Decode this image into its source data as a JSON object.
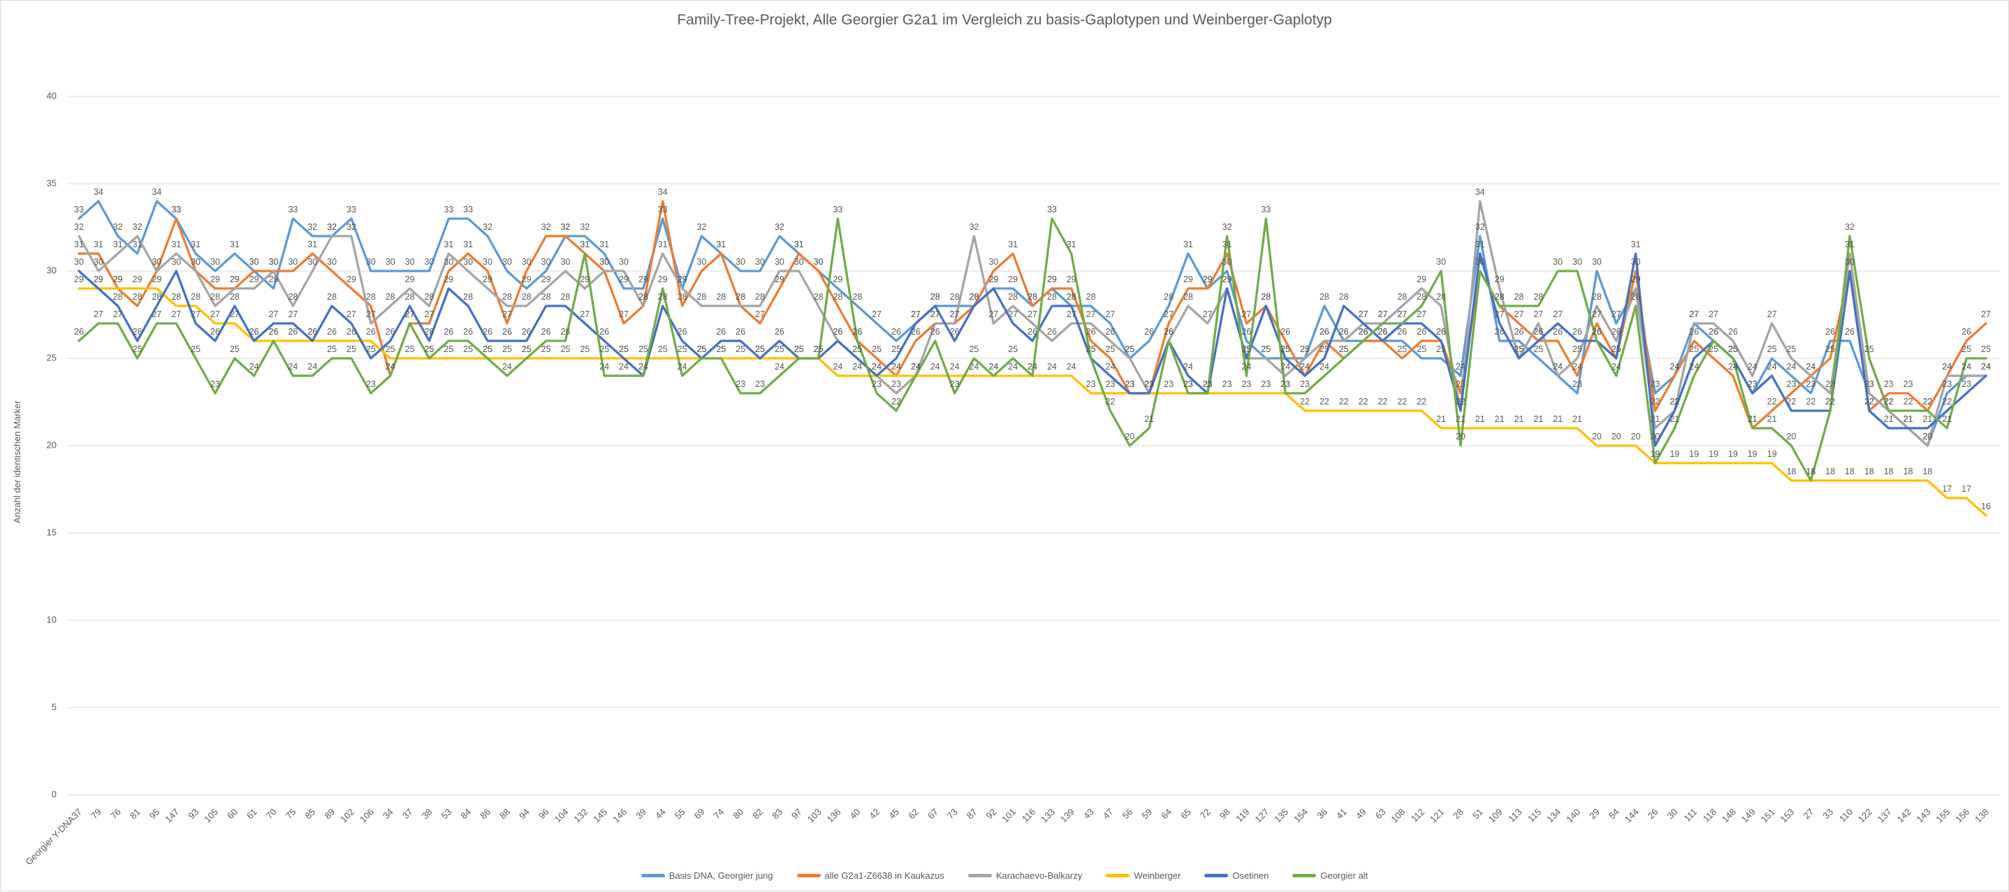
{
  "title": "Family-Tree-Projekt, Alle Georgier G2a1 im Vergleich zu basis-Gaplotypen und Weinberger-Gaplotyp",
  "y_axis": {
    "title": "Anzahl der identischen Marker",
    "ticks": [
      0,
      5,
      10,
      15,
      20,
      25,
      30,
      35,
      40
    ]
  },
  "colors": {
    "grid": "#d9d9d9",
    "axis_text": "#595959",
    "data_label": "#595959",
    "title_text": "#595959",
    "background": "#ffffff"
  },
  "chart_data": {
    "type": "line",
    "title": "Family-Tree-Projekt, Alle Georgier G2a1 im Vergleich zu basis-Gaplotypen und Weinberger-Gaplotyp",
    "xlabel": "",
    "ylabel": "Anzahl der identischen Marker",
    "ylim": [
      0,
      40
    ],
    "y_ticks": [
      0,
      5,
      10,
      15,
      20,
      25,
      30,
      35,
      40
    ],
    "grid": true,
    "data_labels": true,
    "legend_position": "bottom",
    "categories": [
      "Georgier Y-DNA37",
      "79",
      "76",
      "81",
      "95",
      "147",
      "93",
      "105",
      "60",
      "61",
      "70",
      "75",
      "85",
      "89",
      "102",
      "106",
      "34",
      "37",
      "38",
      "53",
      "84",
      "86",
      "88",
      "94",
      "96",
      "104",
      "132",
      "145",
      "146",
      "39",
      "44",
      "55",
      "69",
      "74",
      "80",
      "82",
      "83",
      "97",
      "103",
      "136",
      "40",
      "42",
      "45",
      "62",
      "67",
      "73",
      "87",
      "92",
      "101",
      "116",
      "133",
      "139",
      "43",
      "47",
      "56",
      "59",
      "64",
      "65",
      "72",
      "98",
      "119",
      "127",
      "135",
      "154",
      "36",
      "41",
      "49",
      "63",
      "108",
      "112",
      "121",
      "28",
      "51",
      "109",
      "113",
      "115",
      "134",
      "140",
      "29",
      "54",
      "144",
      "26",
      "30",
      "111",
      "118",
      "148",
      "149",
      "151",
      "153",
      "27",
      "33",
      "110",
      "122",
      "137",
      "142",
      "143",
      "155",
      "156",
      "138"
    ],
    "series": [
      {
        "name": "Basis DNA, Georgier jung",
        "color": "#5B9BD5",
        "values": [
          33,
          34,
          32,
          31,
          34,
          33,
          31,
          30,
          31,
          30,
          29,
          33,
          32,
          32,
          33,
          30,
          30,
          30,
          30,
          33,
          33,
          32,
          30,
          29,
          30,
          32,
          32,
          31,
          29,
          29,
          33,
          29,
          32,
          31,
          30,
          30,
          32,
          31,
          30,
          29,
          28,
          27,
          26,
          27,
          28,
          28,
          28,
          29,
          29,
          28,
          29,
          28,
          28,
          27,
          25,
          26,
          28,
          31,
          29,
          30,
          26,
          25,
          25,
          25,
          28,
          26,
          26,
          26,
          26,
          25,
          25,
          24,
          32,
          26,
          26,
          25,
          24,
          23,
          30,
          27,
          29,
          23,
          24,
          27,
          26,
          25,
          23,
          25,
          24,
          23,
          26,
          26,
          23,
          22,
          21,
          20,
          23,
          24,
          24
        ]
      },
      {
        "name": "alle G2a1-Z6638 in Kaukazus",
        "color": "#ED7D31",
        "values": [
          31,
          31,
          29,
          28,
          30,
          33,
          30,
          29,
          29,
          30,
          30,
          30,
          31,
          30,
          29,
          28,
          24,
          27,
          27,
          30,
          31,
          30,
          27,
          30,
          32,
          32,
          31,
          30,
          27,
          28,
          34,
          28,
          30,
          31,
          28,
          27,
          29,
          31,
          30,
          28,
          26,
          25,
          24,
          26,
          27,
          27,
          28,
          30,
          31,
          28,
          29,
          29,
          26,
          25,
          23,
          23,
          27,
          29,
          29,
          31,
          27,
          28,
          26,
          24,
          26,
          25,
          26,
          26,
          25,
          26,
          26,
          23,
          30,
          28,
          27,
          26,
          26,
          24,
          27,
          25,
          30,
          22,
          24,
          26,
          25,
          24,
          21,
          22,
          23,
          24,
          25,
          30,
          22,
          23,
          23,
          22,
          24,
          26,
          27
        ]
      },
      {
        "name": "Karachaevo-Balkarzy",
        "color": "#A5A5A5",
        "values": [
          32,
          30,
          31,
          32,
          30,
          31,
          30,
          28,
          29,
          29,
          30,
          28,
          30,
          32,
          32,
          27,
          28,
          29,
          28,
          31,
          30,
          29,
          28,
          28,
          29,
          30,
          29,
          30,
          30,
          28,
          31,
          29,
          28,
          28,
          28,
          28,
          30,
          30,
          28,
          26,
          25,
          24,
          23,
          24,
          27,
          27,
          32,
          27,
          28,
          27,
          26,
          27,
          27,
          26,
          25,
          23,
          26,
          28,
          27,
          29,
          25,
          25,
          24,
          25,
          26,
          26,
          27,
          27,
          28,
          29,
          28,
          22,
          34,
          29,
          25,
          27,
          24,
          25,
          28,
          26,
          29,
          21,
          22,
          27,
          27,
          26,
          24,
          27,
          25,
          24,
          23,
          31,
          23,
          22,
          21,
          20,
          24,
          24,
          24
        ]
      },
      {
        "name": "Weinberger",
        "color": "#FFC000",
        "values": [
          29,
          29,
          29,
          29,
          29,
          28,
          28,
          27,
          27,
          26,
          26,
          26,
          26,
          26,
          26,
          26,
          25,
          25,
          25,
          25,
          25,
          25,
          25,
          25,
          25,
          25,
          25,
          25,
          25,
          25,
          25,
          25,
          25,
          25,
          25,
          25,
          25,
          25,
          25,
          24,
          24,
          24,
          24,
          24,
          24,
          24,
          24,
          24,
          24,
          24,
          24,
          24,
          23,
          23,
          23,
          23,
          23,
          23,
          23,
          23,
          23,
          23,
          23,
          22,
          22,
          22,
          22,
          22,
          22,
          22,
          21,
          21,
          21,
          21,
          21,
          21,
          21,
          21,
          20,
          20,
          20,
          19,
          19,
          19,
          19,
          19,
          19,
          19,
          18,
          18,
          18,
          18,
          18,
          18,
          18,
          18,
          17,
          17,
          16
        ]
      },
      {
        "name": "Osetinen",
        "color": "#4472C4",
        "values": [
          30,
          29,
          28,
          26,
          28,
          30,
          27,
          26,
          28,
          26,
          27,
          27,
          26,
          28,
          27,
          25,
          26,
          28,
          26,
          29,
          28,
          26,
          26,
          26,
          28,
          28,
          27,
          26,
          25,
          24,
          28,
          26,
          25,
          26,
          26,
          25,
          26,
          25,
          25,
          26,
          25,
          24,
          25,
          27,
          28,
          26,
          28,
          29,
          27,
          26,
          28,
          28,
          25,
          24,
          23,
          23,
          26,
          24,
          23,
          29,
          25,
          28,
          25,
          24,
          25,
          28,
          27,
          26,
          27,
          27,
          26,
          22,
          31,
          27,
          25,
          26,
          27,
          26,
          26,
          25,
          31,
          20,
          22,
          25,
          26,
          25,
          23,
          24,
          22,
          22,
          22,
          30,
          22,
          21,
          21,
          21,
          22,
          23,
          24
        ]
      },
      {
        "name": "Georgier alt",
        "color": "#70AD47",
        "values": [
          26,
          27,
          27,
          25,
          27,
          27,
          25,
          23,
          25,
          24,
          26,
          24,
          24,
          25,
          25,
          23,
          24,
          27,
          25,
          26,
          26,
          25,
          24,
          25,
          26,
          26,
          31,
          24,
          24,
          24,
          29,
          24,
          25,
          25,
          23,
          23,
          24,
          25,
          25,
          33,
          26,
          23,
          22,
          24,
          26,
          23,
          25,
          24,
          25,
          24,
          33,
          31,
          25,
          22,
          20,
          21,
          26,
          23,
          23,
          32,
          24,
          33,
          23,
          23,
          24,
          25,
          26,
          27,
          27,
          28,
          30,
          20,
          30,
          28,
          28,
          28,
          30,
          30,
          26,
          24,
          28,
          19,
          21,
          24,
          26,
          25,
          21,
          21,
          20,
          18,
          22,
          32,
          25,
          22,
          22,
          22,
          21,
          25,
          25
        ]
      }
    ]
  }
}
